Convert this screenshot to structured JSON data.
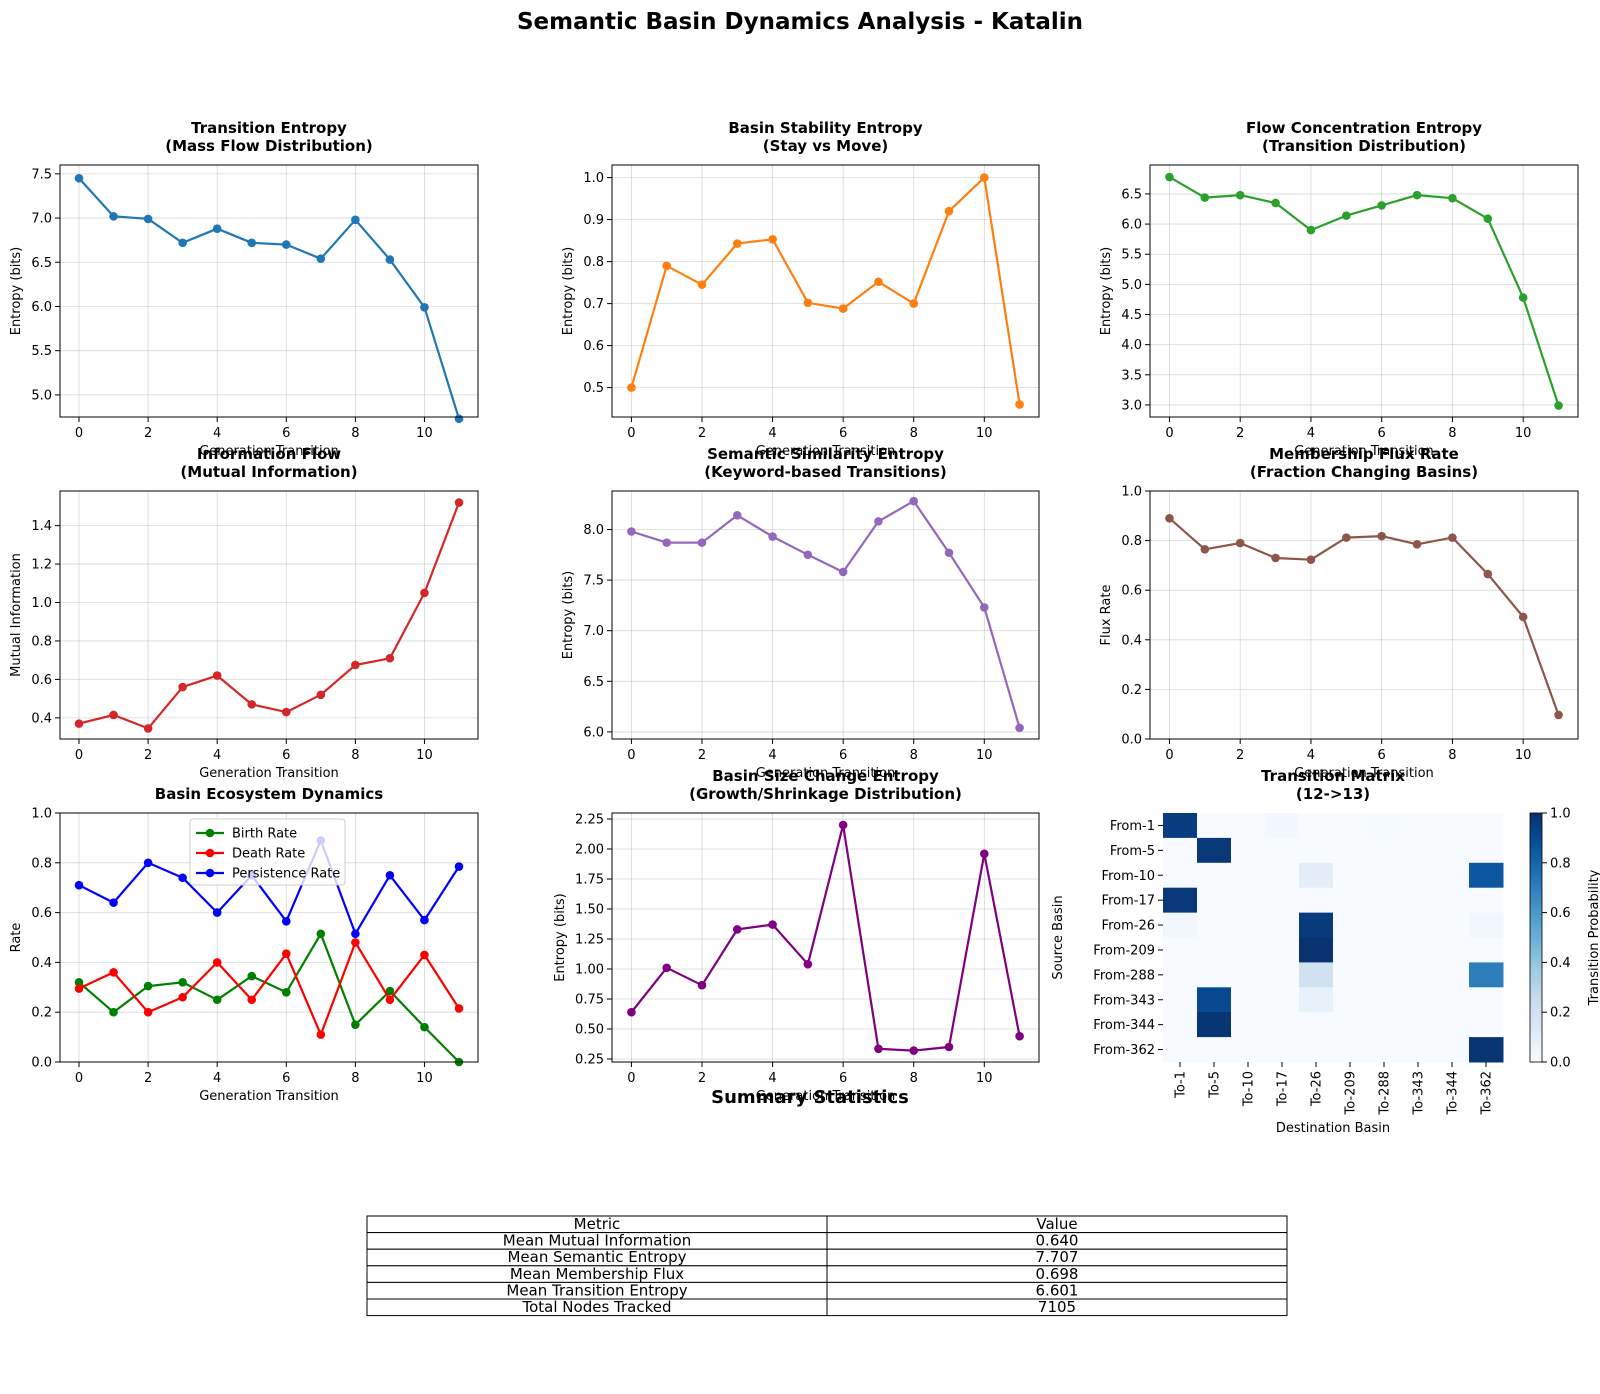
{
  "figure_title": "Semantic Basin Dynamics Analysis - Katalin",
  "chart_data": [
    {
      "id": "transition-entropy",
      "type": "line",
      "title": [
        "Transition Entropy",
        "(Mass Flow Distribution)"
      ],
      "xlabel": "Generation Transition",
      "ylabel": "Entropy (bits)",
      "x": [
        0,
        1,
        2,
        3,
        4,
        5,
        6,
        7,
        8,
        9,
        10,
        11
      ],
      "ylim": [
        4.75,
        7.6
      ],
      "yticks": [
        5.0,
        5.5,
        6.0,
        6.5,
        7.0,
        7.5
      ],
      "ytick_labels": [
        "5.0",
        "5.5",
        "6.0",
        "6.5",
        "7.0",
        "7.5"
      ],
      "xticks": [
        0,
        2,
        4,
        6,
        8,
        10
      ],
      "xtick_labels": [
        "0",
        "2",
        "4",
        "6",
        "8",
        "10"
      ],
      "grid": true,
      "series": [
        {
          "name": "Transition Entropy",
          "color": "#1f77b4",
          "values": [
            7.45,
            7.02,
            6.99,
            6.72,
            6.88,
            6.72,
            6.7,
            6.54,
            6.98,
            6.53,
            5.99,
            4.73
          ]
        }
      ]
    },
    {
      "id": "basin-stability-entropy",
      "type": "line",
      "title": [
        "Basin Stability Entropy",
        "(Stay vs Move)"
      ],
      "xlabel": "Generation Transition",
      "ylabel": "Entropy (bits)",
      "x": [
        0,
        1,
        2,
        3,
        4,
        5,
        6,
        7,
        8,
        9,
        10,
        11
      ],
      "ylim": [
        0.43,
        1.03
      ],
      "yticks": [
        0.5,
        0.6,
        0.7,
        0.8,
        0.9,
        1.0
      ],
      "ytick_labels": [
        "0.5",
        "0.6",
        "0.7",
        "0.8",
        "0.9",
        "1.0"
      ],
      "xticks": [
        0,
        2,
        4,
        6,
        8,
        10
      ],
      "xtick_labels": [
        "0",
        "2",
        "4",
        "6",
        "8",
        "10"
      ],
      "grid": true,
      "series": [
        {
          "name": "Basin Stability Entropy",
          "color": "#ff7f0e",
          "values": [
            0.5,
            0.79,
            0.745,
            0.843,
            0.853,
            0.702,
            0.688,
            0.752,
            0.7,
            0.92,
            1.0,
            0.46
          ]
        }
      ]
    },
    {
      "id": "flow-concentration-entropy",
      "type": "line",
      "title": [
        "Flow Concentration Entropy",
        "(Transition Distribution)"
      ],
      "xlabel": "Generation Transition",
      "ylabel": "Entropy (bits)",
      "x": [
        0,
        1,
        2,
        3,
        4,
        5,
        6,
        7,
        8,
        9,
        10,
        11
      ],
      "ylim": [
        2.8,
        6.98
      ],
      "yticks": [
        3.0,
        3.5,
        4.0,
        4.5,
        5.0,
        5.5,
        6.0,
        6.5
      ],
      "ytick_labels": [
        "3.0",
        "3.5",
        "4.0",
        "4.5",
        "5.0",
        "5.5",
        "6.0",
        "6.5"
      ],
      "xticks": [
        0,
        2,
        4,
        6,
        8,
        10
      ],
      "xtick_labels": [
        "0",
        "2",
        "4",
        "6",
        "8",
        "10"
      ],
      "grid": true,
      "series": [
        {
          "name": "Flow Concentration Entropy",
          "color": "#2ca02c",
          "values": [
            6.78,
            6.44,
            6.48,
            6.35,
            5.9,
            6.14,
            6.31,
            6.48,
            6.43,
            6.09,
            4.78,
            2.99
          ]
        }
      ]
    },
    {
      "id": "information-flow",
      "type": "line",
      "title": [
        "Information Flow",
        "(Mutual Information)"
      ],
      "xlabel": "Generation Transition",
      "ylabel": "Mutual Information",
      "x": [
        0,
        1,
        2,
        3,
        4,
        5,
        6,
        7,
        8,
        9,
        10,
        11
      ],
      "ylim": [
        0.29,
        1.58
      ],
      "yticks": [
        0.4,
        0.6,
        0.8,
        1.0,
        1.2,
        1.4
      ],
      "ytick_labels": [
        "0.4",
        "0.6",
        "0.8",
        "1.0",
        "1.2",
        "1.4"
      ],
      "xticks": [
        0,
        2,
        4,
        6,
        8,
        10
      ],
      "xtick_labels": [
        "0",
        "2",
        "4",
        "6",
        "8",
        "10"
      ],
      "grid": true,
      "series": [
        {
          "name": "Mutual Information",
          "color": "#d62728",
          "values": [
            0.37,
            0.415,
            0.345,
            0.56,
            0.62,
            0.47,
            0.43,
            0.52,
            0.675,
            0.71,
            1.05,
            1.52
          ]
        }
      ]
    },
    {
      "id": "semantic-similarity-entropy",
      "type": "line",
      "title": [
        "Semantic Similarity Entropy",
        "(Keyword-based Transitions)"
      ],
      "xlabel": "Generation Transition",
      "ylabel": "Entropy (bits)",
      "x": [
        0,
        1,
        2,
        3,
        4,
        5,
        6,
        7,
        8,
        9,
        10,
        11
      ],
      "ylim": [
        5.93,
        8.38
      ],
      "yticks": [
        6.0,
        6.5,
        7.0,
        7.5,
        8.0
      ],
      "ytick_labels": [
        "6.0",
        "6.5",
        "7.0",
        "7.5",
        "8.0"
      ],
      "xticks": [
        0,
        2,
        4,
        6,
        8,
        10
      ],
      "xtick_labels": [
        "0",
        "2",
        "4",
        "6",
        "8",
        "10"
      ],
      "grid": true,
      "series": [
        {
          "name": "Semantic Similarity Entropy",
          "color": "#9467bd",
          "values": [
            7.98,
            7.87,
            7.87,
            8.14,
            7.93,
            7.75,
            7.58,
            8.08,
            8.28,
            7.77,
            7.23,
            6.04
          ]
        }
      ]
    },
    {
      "id": "membership-flux-rate",
      "type": "line",
      "title": [
        "Membership Flux Rate",
        "(Fraction Changing Basins)"
      ],
      "xlabel": "Generation Transition",
      "ylabel": "Flux Rate",
      "x": [
        0,
        1,
        2,
        3,
        4,
        5,
        6,
        7,
        8,
        9,
        10,
        11
      ],
      "ylim": [
        0.0,
        1.0
      ],
      "yticks": [
        0.0,
        0.2,
        0.4,
        0.6,
        0.8,
        1.0
      ],
      "ytick_labels": [
        "0.0",
        "0.2",
        "0.4",
        "0.6",
        "0.8",
        "1.0"
      ],
      "xticks": [
        0,
        2,
        4,
        6,
        8,
        10
      ],
      "xtick_labels": [
        "0",
        "2",
        "4",
        "6",
        "8",
        "10"
      ],
      "grid": true,
      "series": [
        {
          "name": "Flux Rate",
          "color": "#8c564b",
          "values": [
            0.89,
            0.765,
            0.79,
            0.73,
            0.723,
            0.812,
            0.818,
            0.785,
            0.812,
            0.665,
            0.492,
            0.097
          ]
        }
      ]
    },
    {
      "id": "basin-ecosystem-dynamics",
      "type": "line",
      "title": [
        "Basin Ecosystem Dynamics"
      ],
      "xlabel": "Generation Transition",
      "ylabel": "Rate",
      "x": [
        0,
        1,
        2,
        3,
        4,
        5,
        6,
        7,
        8,
        9,
        10,
        11
      ],
      "ylim": [
        0.0,
        1.0
      ],
      "yticks": [
        0.0,
        0.2,
        0.4,
        0.6,
        0.8,
        1.0
      ],
      "ytick_labels": [
        "0.0",
        "0.2",
        "0.4",
        "0.6",
        "0.8",
        "1.0"
      ],
      "xticks": [
        0,
        2,
        4,
        6,
        8,
        10
      ],
      "xtick_labels": [
        "0",
        "2",
        "4",
        "6",
        "8",
        "10"
      ],
      "grid": true,
      "legend": "upper center",
      "series": [
        {
          "name": "Birth Rate",
          "color": "#008000",
          "values": [
            0.32,
            0.2,
            0.305,
            0.32,
            0.25,
            0.345,
            0.28,
            0.515,
            0.15,
            0.285,
            0.14,
            0.0
          ]
        },
        {
          "name": "Death Rate",
          "color": "#ff0000",
          "values": [
            0.295,
            0.36,
            0.2,
            0.26,
            0.4,
            0.25,
            0.435,
            0.11,
            0.48,
            0.25,
            0.43,
            0.215
          ]
        },
        {
          "name": "Persistence Rate",
          "color": "#0000ff",
          "values": [
            0.71,
            0.64,
            0.8,
            0.74,
            0.6,
            0.75,
            0.565,
            0.89,
            0.515,
            0.75,
            0.57,
            0.785
          ]
        }
      ]
    },
    {
      "id": "basin-size-change-entropy",
      "type": "line",
      "title": [
        "Basin Size Change Entropy",
        "(Growth/Shrinkage Distribution)"
      ],
      "xlabel": "Generation Transition",
      "ylabel": "Entropy (bits)",
      "x": [
        0,
        1,
        2,
        3,
        4,
        5,
        6,
        7,
        8,
        9,
        10,
        11
      ],
      "ylim": [
        0.225,
        2.3
      ],
      "yticks": [
        0.25,
        0.5,
        0.75,
        1.0,
        1.25,
        1.5,
        1.75,
        2.0,
        2.25
      ],
      "ytick_labels": [
        "0.25",
        "0.50",
        "0.75",
        "1.00",
        "1.25",
        "1.50",
        "1.75",
        "2.00",
        "2.25"
      ],
      "xticks": [
        0,
        2,
        4,
        6,
        8,
        10
      ],
      "xtick_labels": [
        "0",
        "2",
        "4",
        "6",
        "8",
        "10"
      ],
      "grid": true,
      "series": [
        {
          "name": "Basin Size Change Entropy",
          "color": "#800080",
          "values": [
            0.64,
            1.01,
            0.865,
            1.33,
            1.37,
            1.04,
            2.2,
            0.335,
            0.32,
            0.35,
            1.96,
            0.44
          ]
        }
      ]
    },
    {
      "id": "transition-matrix",
      "type": "heatmap",
      "title": [
        "Transition Matrix",
        "(12->13)"
      ],
      "xlabel": "Destination Basin",
      "ylabel": "Source Basin",
      "rows": [
        "From-1",
        "From-5",
        "From-10",
        "From-17",
        "From-26",
        "From-209",
        "From-288",
        "From-343",
        "From-344",
        "From-362"
      ],
      "cols": [
        "To-1",
        "To-5",
        "To-10",
        "To-17",
        "To-26",
        "To-209",
        "To-288",
        "To-343",
        "To-344",
        "To-362"
      ],
      "colorbar_label": "Transition Probability",
      "colorbar_ticks": [
        0.0,
        0.2,
        0.4,
        0.6,
        0.8,
        1.0
      ],
      "colorbar_tick_labels": [
        "0.0",
        "0.2",
        "0.4",
        "0.6",
        "0.8",
        "1.0"
      ],
      "values": [
        [
          0.95,
          0.0,
          0.0,
          0.02,
          0.0,
          0.0,
          0.01,
          0.0,
          0.0,
          0.0
        ],
        [
          0.0,
          0.97,
          0.0,
          0.0,
          0.0,
          0.0,
          0.0,
          0.0,
          0.0,
          0.0
        ],
        [
          0.0,
          0.0,
          0.0,
          0.0,
          0.1,
          0.0,
          0.0,
          0.0,
          0.0,
          0.85
        ],
        [
          0.97,
          0.0,
          0.0,
          0.0,
          0.0,
          0.0,
          0.0,
          0.0,
          0.0,
          0.0
        ],
        [
          0.03,
          0.0,
          0.0,
          0.0,
          0.96,
          0.0,
          0.0,
          0.0,
          0.0,
          0.03
        ],
        [
          0.0,
          0.0,
          0.0,
          0.0,
          0.99,
          0.0,
          0.0,
          0.0,
          0.0,
          0.0
        ],
        [
          0.0,
          0.0,
          0.0,
          0.0,
          0.2,
          0.0,
          0.0,
          0.0,
          0.0,
          0.7
        ],
        [
          0.0,
          0.9,
          0.0,
          0.0,
          0.08,
          0.0,
          0.0,
          0.0,
          0.0,
          0.0
        ],
        [
          0.0,
          0.98,
          0.0,
          0.0,
          0.0,
          0.0,
          0.0,
          0.0,
          0.0,
          0.0
        ],
        [
          0.0,
          0.0,
          0.0,
          0.0,
          0.0,
          0.0,
          0.0,
          0.0,
          0.0,
          0.98
        ]
      ]
    }
  ],
  "summary": {
    "title": "Summary Statistics",
    "headers": [
      "Metric",
      "Value"
    ],
    "rows": [
      [
        "Mean Mutual Information",
        "0.640"
      ],
      [
        "Mean Semantic Entropy",
        "7.707"
      ],
      [
        "Mean Membership Flux",
        "0.698"
      ],
      [
        "Mean Transition Entropy",
        "6.601"
      ],
      [
        "Total Nodes Tracked",
        "7105"
      ]
    ]
  }
}
